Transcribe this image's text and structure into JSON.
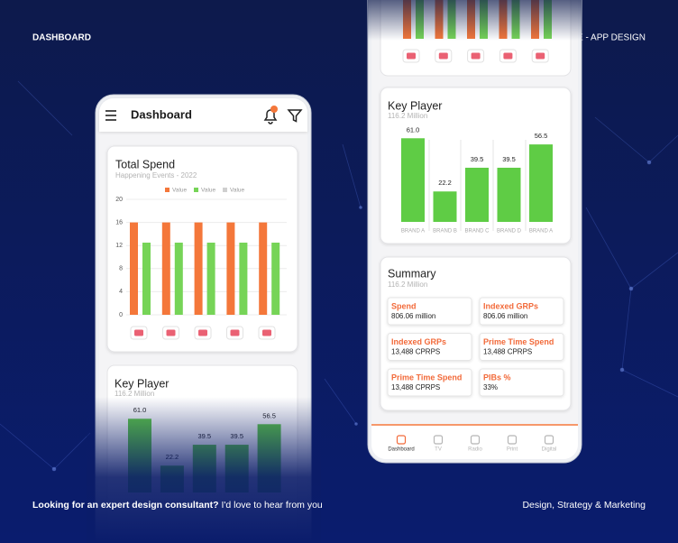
{
  "header": {
    "left": "DASHBOARD",
    "right": "IG SQUARE - APP DESIGN"
  },
  "app_bar": {
    "title": "Dashboard"
  },
  "total_spend": {
    "title": "Total Spend",
    "subtitle": "Happening Events - 2022",
    "legend": [
      {
        "name": "Value",
        "color": "#f4773a"
      },
      {
        "name": "Value",
        "color": "#76d457"
      },
      {
        "name": "Value",
        "color": "#cfcfcf"
      }
    ],
    "series": [
      {
        "color": "#f4773a",
        "values": [
          16,
          16,
          16,
          16,
          16
        ]
      },
      {
        "color": "#76d457",
        "values": [
          12.5,
          12.5,
          12.5,
          12.5,
          12.5
        ]
      }
    ],
    "ylim": [
      0,
      20
    ],
    "yticks": [
      0,
      4,
      8,
      12,
      16,
      20
    ],
    "grid": true
  },
  "key_player": {
    "title": "Key Player",
    "subtitle": "116.2 Million",
    "categories": [
      "BRAND A",
      "BRAND B",
      "BRAND C",
      "BRAND D",
      "BRAND A"
    ],
    "values": [
      61,
      22.2,
      39.5,
      39.5,
      56.5
    ],
    "value_labels": [
      "61.0",
      "22.2",
      "39.5",
      "39.5",
      "56.5"
    ],
    "color": "#5fcc45"
  },
  "summary": {
    "title": "Summary",
    "subtitle": "116.2 Million",
    "cards": [
      {
        "label": "Spend",
        "value": "806.06 million"
      },
      {
        "label": "Indexed GRPs",
        "value": "806.06 million"
      },
      {
        "label": "Indexed GRPs",
        "value": "13,488 CPRPS"
      },
      {
        "label": "Prime Time Spend",
        "value": "13,488 CPRPS"
      },
      {
        "label": "Prime Time Spend",
        "value": "13,488 CPRPS"
      },
      {
        "label": "PIBs %",
        "value": "33%"
      }
    ]
  },
  "nav": {
    "items": [
      "Dashboard",
      "TV",
      "Radio",
      "Print",
      "Digital"
    ],
    "active": 0
  },
  "footer": {
    "left_bold": "Looking for an expert design consultant?",
    "left_rest": "I'd love to hear from you",
    "right": "Design, Strategy & Marketing"
  }
}
